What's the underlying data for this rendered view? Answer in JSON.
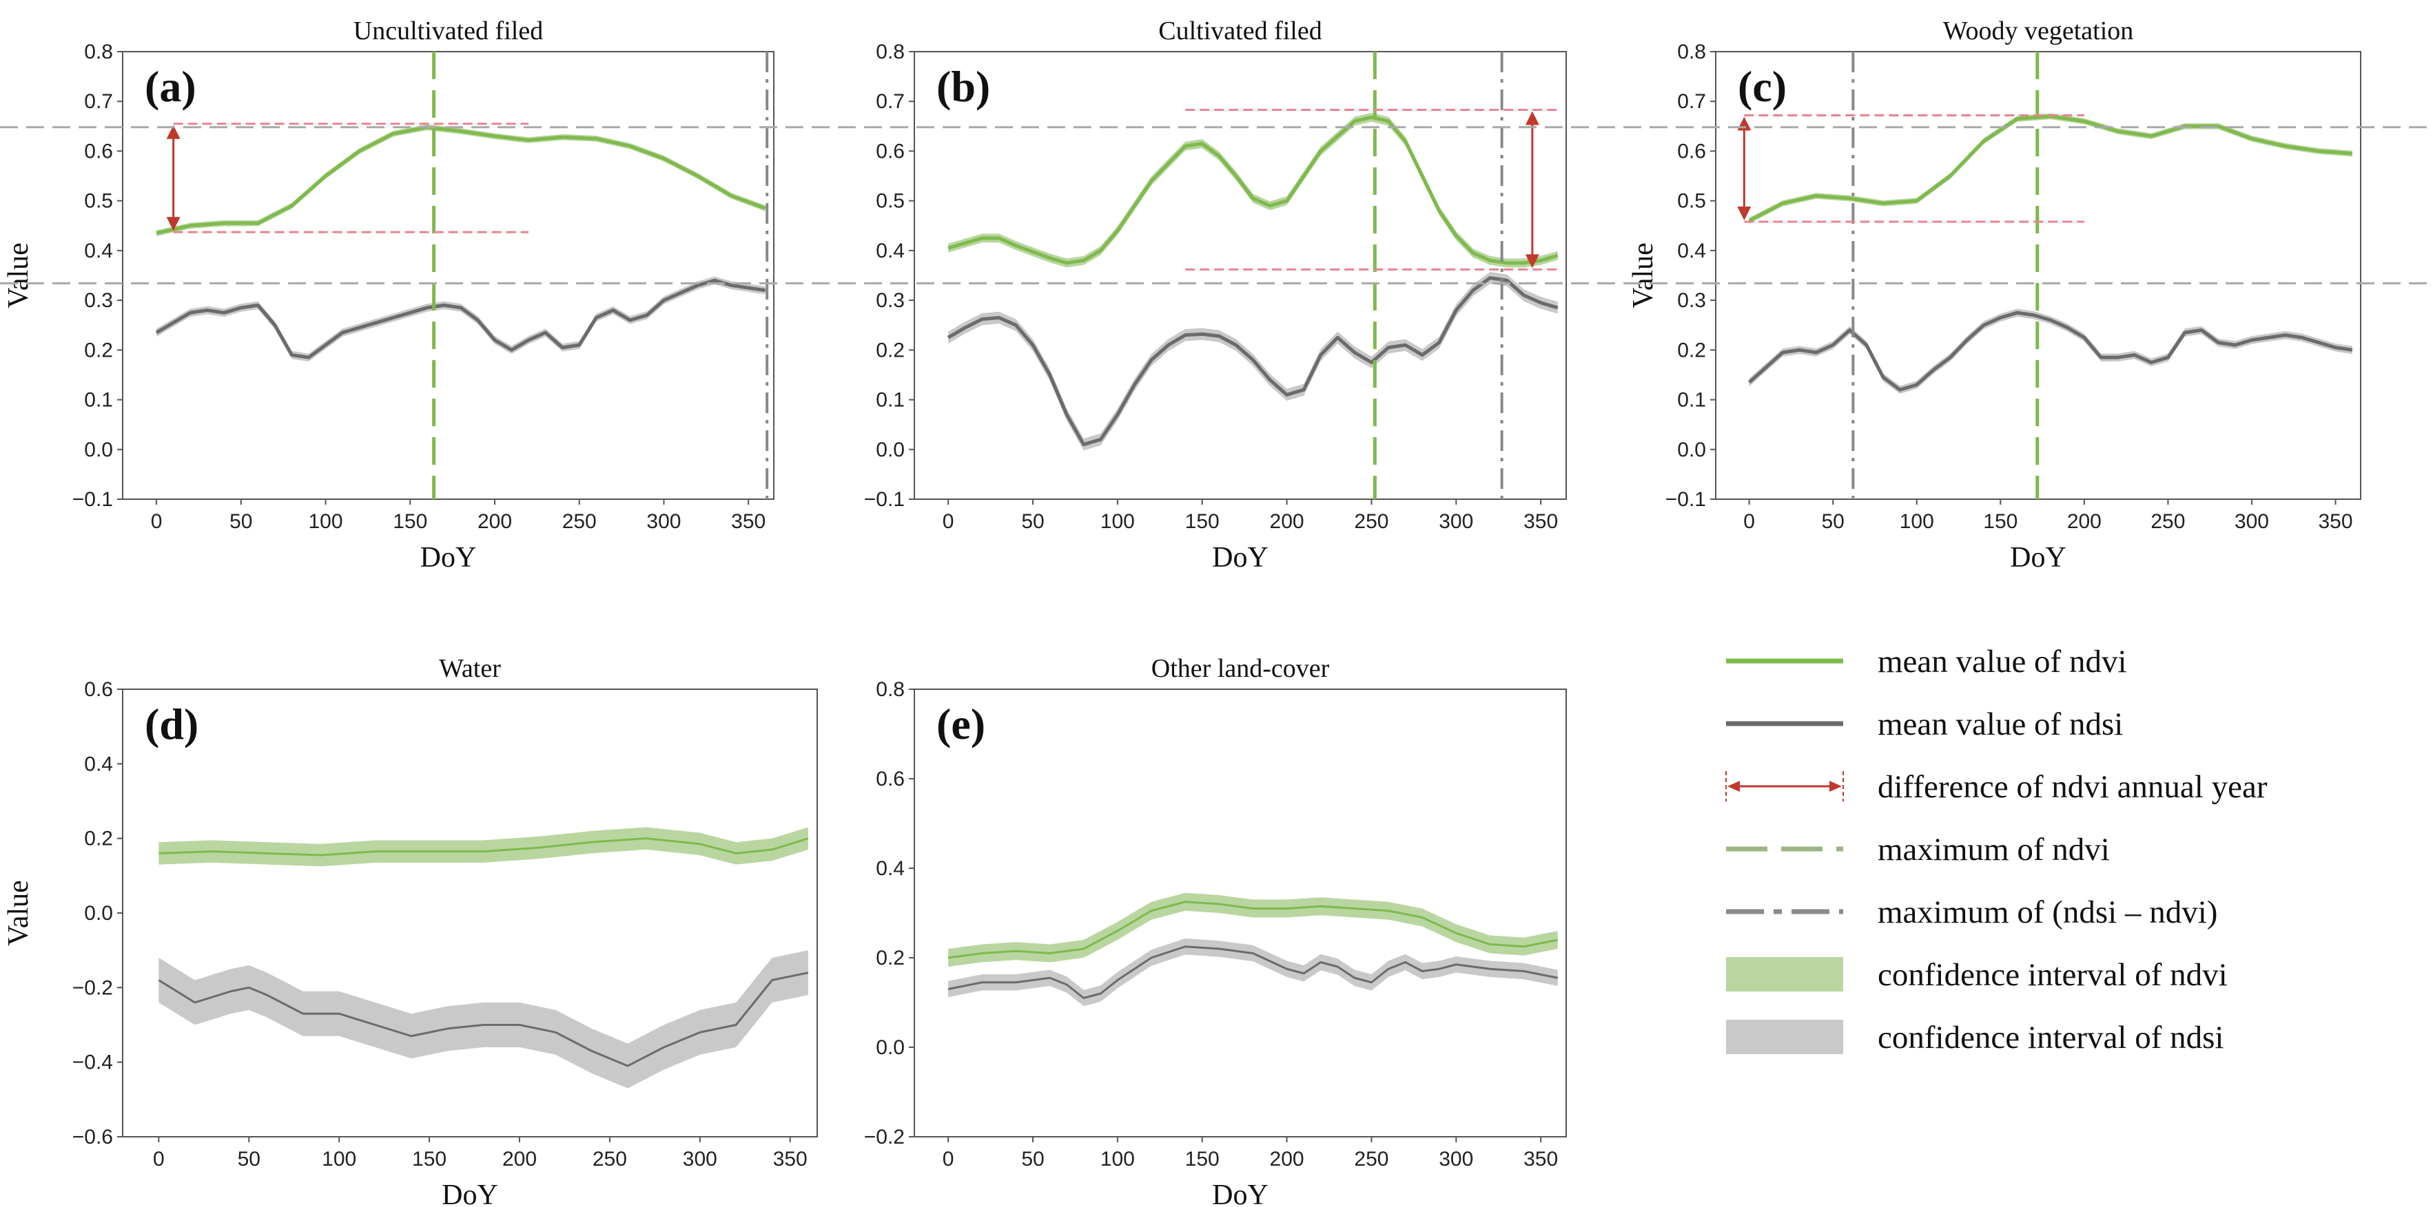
{
  "colors": {
    "ndvi_line": "#7fba4c",
    "ndvi_band": "#b9d6a1",
    "ndsi_line": "#6b6b6b",
    "ndsi_band": "#c9c9c9",
    "arrow": "#c0392b",
    "ref_line": "#e8848e",
    "hline": "#a9a9a9"
  },
  "legend": [
    {
      "kind": "ndvi-line",
      "label": "mean value of ndvi"
    },
    {
      "kind": "ndsi-line",
      "label": "mean value of ndsi"
    },
    {
      "kind": "arrow",
      "label": "difference of ndvi annual year"
    },
    {
      "kind": "ndvi-dash",
      "label": "maximum of ndvi"
    },
    {
      "kind": "ndsi-dashdot",
      "label": "maximum of (ndsi – ndvi)"
    },
    {
      "kind": "ndvi-band",
      "label": "confidence interval of ndvi"
    },
    {
      "kind": "ndsi-band",
      "label": "confidence interval of ndsi"
    }
  ],
  "chart_data": [
    {
      "panel": "(a)",
      "title": "Uncultivated filed",
      "type": "line",
      "xlabel": "DoY",
      "ylabel": "Value",
      "xlim": [
        -20,
        365
      ],
      "ylim": [
        -0.1,
        0.8
      ],
      "xticks": [
        0,
        50,
        100,
        150,
        200,
        250,
        300,
        350
      ],
      "yticks": [
        "−0.1",
        "0.0",
        "0.1",
        "0.2",
        "0.3",
        "0.4",
        "0.5",
        "0.6",
        "0.7",
        "0.8"
      ],
      "ndvi_max_doy": 164,
      "diff_max_doy": 361,
      "ndvi_diff": {
        "doy": 10,
        "low": 0.437,
        "high": 0.655,
        "ref_x_end": 220
      },
      "hlines": [
        0.648,
        0.334
      ],
      "series": [
        {
          "name": "ndvi",
          "ci": 0.006,
          "x": [
            0,
            20,
            40,
            60,
            80,
            100,
            120,
            140,
            160,
            180,
            200,
            220,
            240,
            260,
            280,
            300,
            320,
            340,
            360
          ],
          "y": [
            0.435,
            0.45,
            0.455,
            0.455,
            0.49,
            0.55,
            0.6,
            0.635,
            0.648,
            0.64,
            0.63,
            0.622,
            0.628,
            0.625,
            0.61,
            0.585,
            0.55,
            0.51,
            0.485
          ]
        },
        {
          "name": "ndsi",
          "ci": 0.008,
          "x": [
            0,
            10,
            20,
            30,
            40,
            50,
            60,
            70,
            80,
            90,
            100,
            110,
            120,
            140,
            160,
            170,
            180,
            190,
            200,
            210,
            220,
            230,
            240,
            250,
            260,
            270,
            280,
            290,
            300,
            310,
            320,
            330,
            340,
            350,
            360
          ],
          "y": [
            0.235,
            0.255,
            0.275,
            0.28,
            0.275,
            0.285,
            0.29,
            0.25,
            0.19,
            0.185,
            0.21,
            0.235,
            0.245,
            0.265,
            0.285,
            0.29,
            0.285,
            0.26,
            0.22,
            0.2,
            0.22,
            0.235,
            0.205,
            0.21,
            0.265,
            0.28,
            0.26,
            0.27,
            0.3,
            0.315,
            0.33,
            0.34,
            0.33,
            0.325,
            0.32
          ]
        }
      ]
    },
    {
      "panel": "(b)",
      "title": "Cultivated filed",
      "type": "line",
      "xlabel": "DoY",
      "ylabel": "",
      "xlim": [
        -20,
        365
      ],
      "ylim": [
        -0.1,
        0.8
      ],
      "xticks": [
        0,
        50,
        100,
        150,
        200,
        250,
        300,
        350
      ],
      "yticks": [
        "−0.1",
        "0.0",
        "0.1",
        "0.2",
        "0.3",
        "0.4",
        "0.5",
        "0.6",
        "0.7",
        "0.8"
      ],
      "ndvi_max_doy": 252,
      "diff_max_doy": 327,
      "ndvi_diff": {
        "doy": 345,
        "low": 0.362,
        "high": 0.683,
        "ref_x_start": 140
      },
      "hlines": [
        0.648,
        0.334
      ],
      "series": [
        {
          "name": "ndvi",
          "ci": 0.009,
          "x": [
            0,
            20,
            30,
            40,
            60,
            70,
            80,
            90,
            100,
            120,
            140,
            150,
            160,
            170,
            180,
            190,
            200,
            210,
            220,
            240,
            250,
            260,
            270,
            280,
            290,
            300,
            310,
            320,
            330,
            340,
            350,
            360
          ],
          "y": [
            0.405,
            0.425,
            0.425,
            0.41,
            0.385,
            0.375,
            0.38,
            0.4,
            0.44,
            0.54,
            0.61,
            0.615,
            0.59,
            0.55,
            0.505,
            0.49,
            0.5,
            0.55,
            0.6,
            0.66,
            0.668,
            0.66,
            0.62,
            0.55,
            0.48,
            0.43,
            0.395,
            0.38,
            0.375,
            0.375,
            0.38,
            0.39
          ]
        },
        {
          "name": "ndsi",
          "ci": 0.012,
          "x": [
            0,
            10,
            20,
            30,
            40,
            50,
            60,
            70,
            80,
            90,
            100,
            110,
            120,
            130,
            140,
            150,
            160,
            170,
            180,
            190,
            200,
            210,
            220,
            230,
            240,
            250,
            260,
            270,
            280,
            290,
            300,
            310,
            320,
            330,
            340,
            350,
            360
          ],
          "y": [
            0.225,
            0.245,
            0.262,
            0.265,
            0.25,
            0.21,
            0.15,
            0.07,
            0.01,
            0.02,
            0.07,
            0.13,
            0.18,
            0.21,
            0.23,
            0.232,
            0.228,
            0.21,
            0.18,
            0.14,
            0.11,
            0.12,
            0.19,
            0.225,
            0.195,
            0.175,
            0.205,
            0.21,
            0.19,
            0.215,
            0.28,
            0.32,
            0.345,
            0.34,
            0.31,
            0.295,
            0.285
          ]
        }
      ]
    },
    {
      "panel": "(c)",
      "title": "Woody vegetation",
      "type": "line",
      "xlabel": "DoY",
      "ylabel": "Value",
      "xlim": [
        -20,
        365
      ],
      "ylim": [
        -0.1,
        0.8
      ],
      "xticks": [
        0,
        50,
        100,
        150,
        200,
        250,
        300,
        350
      ],
      "yticks": [
        "−0.1",
        "0.0",
        "0.1",
        "0.2",
        "0.3",
        "0.4",
        "0.5",
        "0.6",
        "0.7",
        "0.8"
      ],
      "ndvi_max_doy": 172,
      "diff_max_doy": 62,
      "ndvi_diff": {
        "doy": -3,
        "low": 0.458,
        "high": 0.672,
        "ref_x_end": 200
      },
      "hlines": [
        0.648,
        0.334
      ],
      "series": [
        {
          "name": "ndvi",
          "ci": 0.006,
          "x": [
            0,
            20,
            40,
            60,
            80,
            100,
            120,
            140,
            160,
            180,
            200,
            220,
            240,
            260,
            280,
            300,
            320,
            340,
            360
          ],
          "y": [
            0.46,
            0.495,
            0.51,
            0.505,
            0.495,
            0.5,
            0.55,
            0.62,
            0.665,
            0.67,
            0.66,
            0.64,
            0.63,
            0.65,
            0.65,
            0.625,
            0.61,
            0.6,
            0.595
          ]
        },
        {
          "name": "ndsi",
          "ci": 0.008,
          "x": [
            0,
            10,
            20,
            30,
            40,
            50,
            60,
            70,
            80,
            90,
            100,
            110,
            120,
            130,
            140,
            150,
            160,
            170,
            180,
            190,
            200,
            210,
            220,
            230,
            240,
            250,
            260,
            270,
            280,
            290,
            300,
            310,
            320,
            330,
            340,
            350,
            360
          ],
          "y": [
            0.135,
            0.165,
            0.195,
            0.2,
            0.195,
            0.21,
            0.24,
            0.21,
            0.145,
            0.12,
            0.13,
            0.16,
            0.185,
            0.22,
            0.25,
            0.265,
            0.275,
            0.27,
            0.26,
            0.245,
            0.225,
            0.185,
            0.185,
            0.19,
            0.175,
            0.185,
            0.235,
            0.24,
            0.215,
            0.21,
            0.22,
            0.225,
            0.23,
            0.225,
            0.215,
            0.205,
            0.2
          ]
        }
      ]
    },
    {
      "panel": "(d)",
      "title": "Water",
      "type": "line",
      "xlabel": "DoY",
      "ylabel": "Value",
      "xlim": [
        -20,
        365
      ],
      "ylim": [
        -0.6,
        0.6
      ],
      "xticks": [
        0,
        50,
        100,
        150,
        200,
        250,
        300,
        350
      ],
      "yticks": [
        "−0.6",
        "−0.4",
        "−0.2",
        "0.0",
        "0.2",
        "0.4",
        "0.6"
      ],
      "series": [
        {
          "name": "ndvi",
          "ci": 0.03,
          "x": [
            0,
            30,
            60,
            90,
            120,
            150,
            180,
            210,
            240,
            270,
            300,
            320,
            340,
            360
          ],
          "y": [
            0.16,
            0.165,
            0.16,
            0.155,
            0.165,
            0.165,
            0.165,
            0.175,
            0.19,
            0.2,
            0.185,
            0.16,
            0.17,
            0.2
          ]
        },
        {
          "name": "ndsi",
          "ci": 0.06,
          "x": [
            0,
            20,
            40,
            50,
            60,
            80,
            100,
            120,
            140,
            160,
            180,
            200,
            220,
            240,
            260,
            280,
            300,
            320,
            340,
            360
          ],
          "y": [
            -0.18,
            -0.24,
            -0.21,
            -0.2,
            -0.22,
            -0.27,
            -0.27,
            -0.3,
            -0.33,
            -0.31,
            -0.3,
            -0.3,
            -0.32,
            -0.37,
            -0.41,
            -0.36,
            -0.32,
            -0.3,
            -0.18,
            -0.16
          ]
        }
      ]
    },
    {
      "panel": "(e)",
      "title": "Other land-cover",
      "type": "line",
      "xlabel": "DoY",
      "ylabel": "",
      "xlim": [
        -20,
        365
      ],
      "ylim": [
        -0.2,
        0.8
      ],
      "xticks": [
        0,
        50,
        100,
        150,
        200,
        250,
        300,
        350
      ],
      "yticks": [
        "−0.2",
        "0.0",
        "0.2",
        "0.4",
        "0.6",
        "0.8"
      ],
      "series": [
        {
          "name": "ndvi",
          "ci": 0.02,
          "x": [
            0,
            20,
            40,
            60,
            80,
            100,
            120,
            140,
            160,
            180,
            200,
            220,
            240,
            260,
            280,
            300,
            320,
            340,
            360
          ],
          "y": [
            0.2,
            0.21,
            0.215,
            0.21,
            0.22,
            0.26,
            0.305,
            0.325,
            0.32,
            0.31,
            0.31,
            0.315,
            0.31,
            0.305,
            0.29,
            0.255,
            0.23,
            0.225,
            0.24
          ]
        },
        {
          "name": "ndsi",
          "ci": 0.018,
          "x": [
            0,
            20,
            40,
            60,
            70,
            80,
            90,
            100,
            120,
            140,
            160,
            180,
            200,
            210,
            220,
            230,
            240,
            250,
            260,
            270,
            280,
            290,
            300,
            320,
            340,
            360
          ],
          "y": [
            0.13,
            0.145,
            0.145,
            0.155,
            0.14,
            0.11,
            0.12,
            0.15,
            0.2,
            0.225,
            0.22,
            0.21,
            0.175,
            0.165,
            0.19,
            0.18,
            0.155,
            0.145,
            0.175,
            0.19,
            0.17,
            0.175,
            0.185,
            0.175,
            0.17,
            0.155
          ]
        }
      ]
    }
  ]
}
